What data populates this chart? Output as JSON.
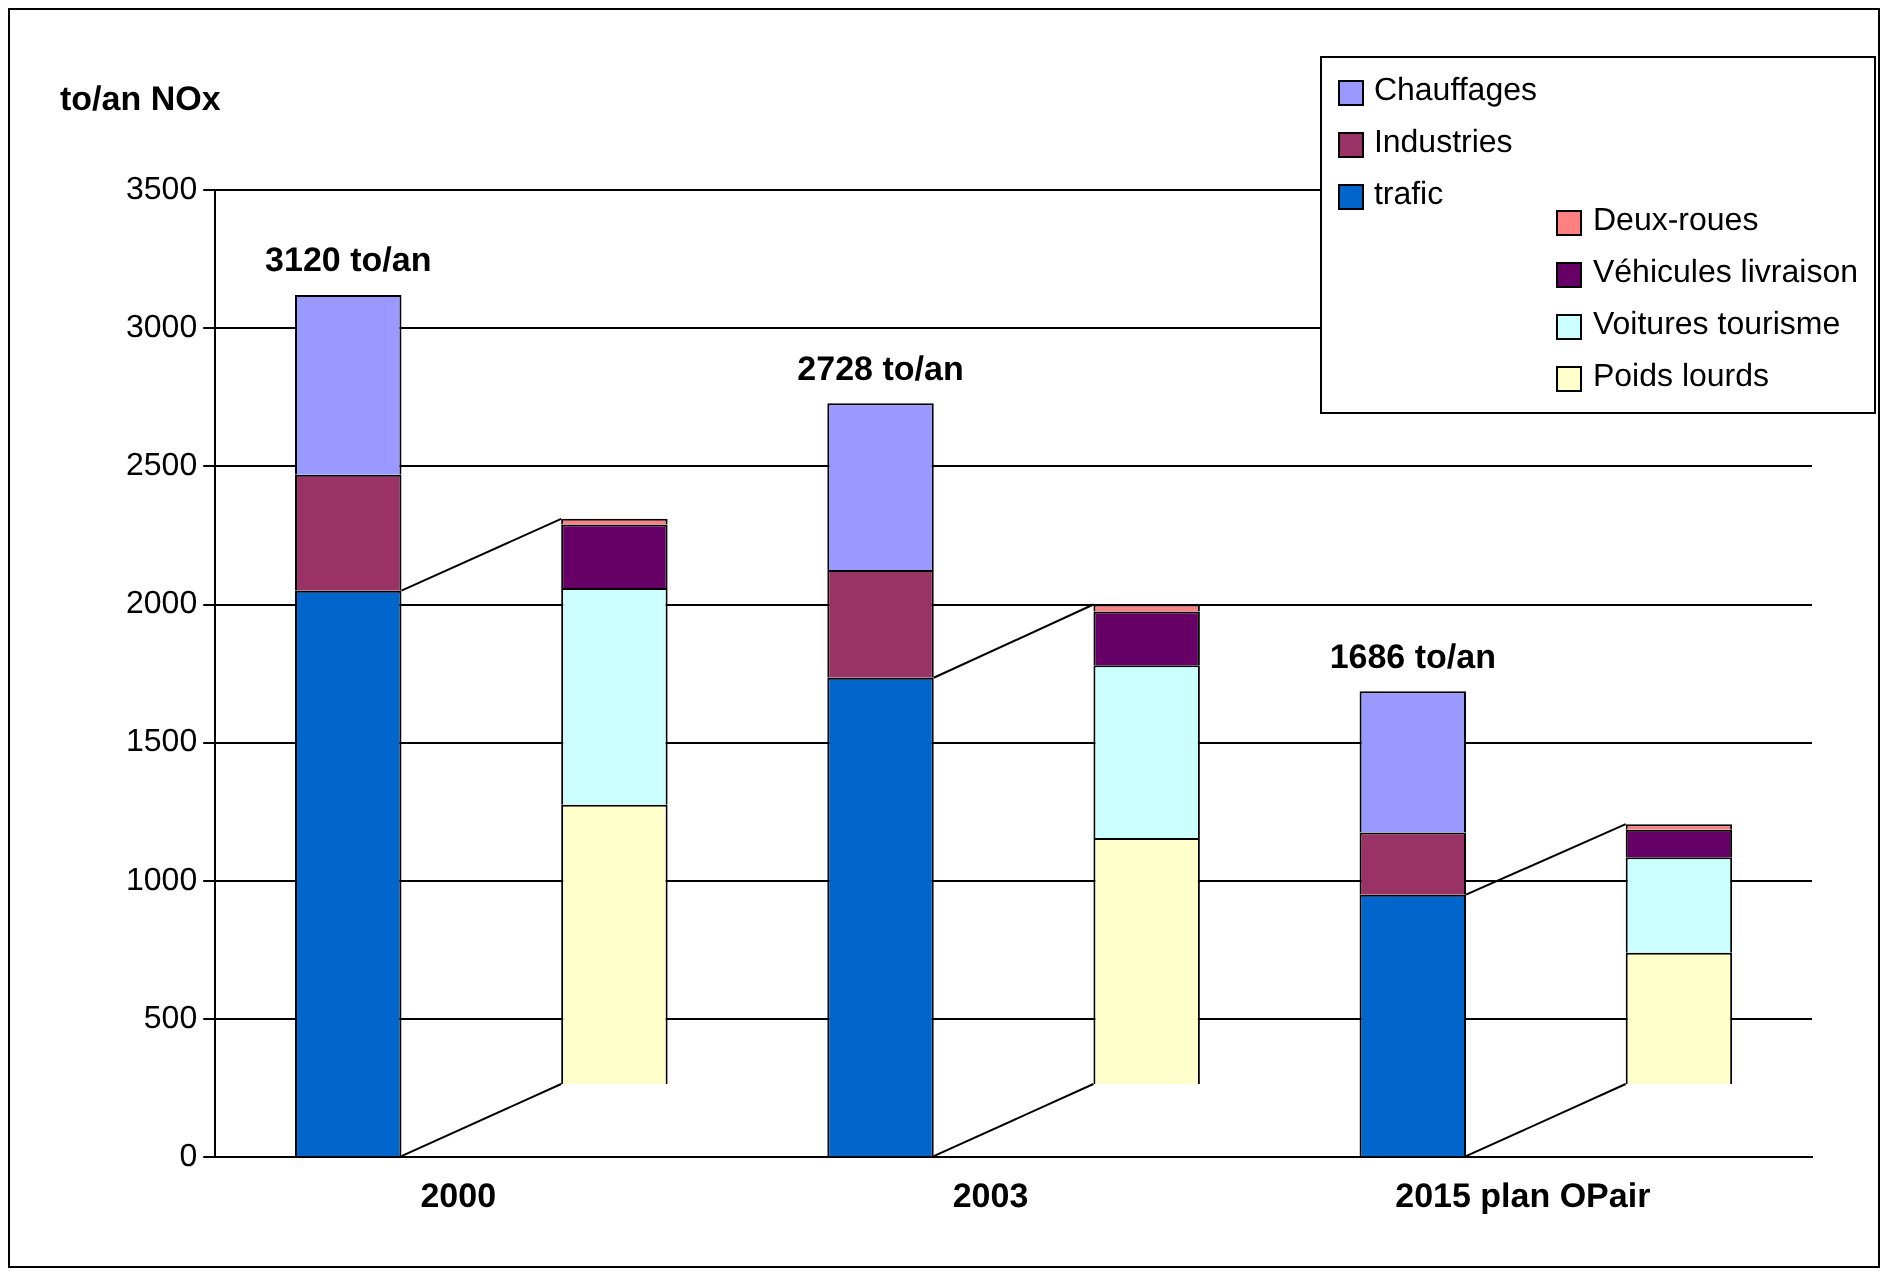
{
  "chart_data": {
    "type": "bar",
    "ylabel": "to/an NOx",
    "categories": [
      "2000",
      null,
      "2003",
      null,
      "2015 plan OPair",
      null
    ],
    "series": [
      {
        "name": "trafic",
        "color": "#0066cc",
        "values": [
          2050,
          null,
          1735,
          null,
          950,
          null
        ]
      },
      {
        "name": "Industries",
        "color": "#993366",
        "values": [
          420,
          null,
          390,
          null,
          225,
          null
        ]
      },
      {
        "name": "Chauffages",
        "color": "#9999ff",
        "values": [
          650,
          null,
          603,
          null,
          511,
          null
        ]
      },
      {
        "name": "Poids lourds",
        "color": "#ffffcc",
        "values": [
          null,
          1010,
          null,
          890,
          null,
          475
        ],
        "base": [
          null,
          265,
          null,
          265,
          null,
          265
        ]
      },
      {
        "name": "Voitures tourisme",
        "color": "#ccffff",
        "values": [
          null,
          785,
          null,
          625,
          null,
          345
        ]
      },
      {
        "name": "Véhicules livraison",
        "color": "#660066",
        "values": [
          null,
          230,
          null,
          195,
          null,
          100
        ]
      },
      {
        "name": "Deux-roues",
        "color": "#ff8080",
        "values": [
          null,
          20,
          null,
          25,
          null,
          20
        ]
      }
    ],
    "stacked": true,
    "totals": [
      "3120 to/an",
      null,
      "2728 to/an",
      null,
      "1686 to/an",
      null
    ],
    "ylim": [
      0,
      3500
    ],
    "yticks": [
      0,
      500,
      1000,
      1500,
      2000,
      2500,
      3000,
      3500
    ],
    "grid": "y",
    "legend": "top right"
  }
}
